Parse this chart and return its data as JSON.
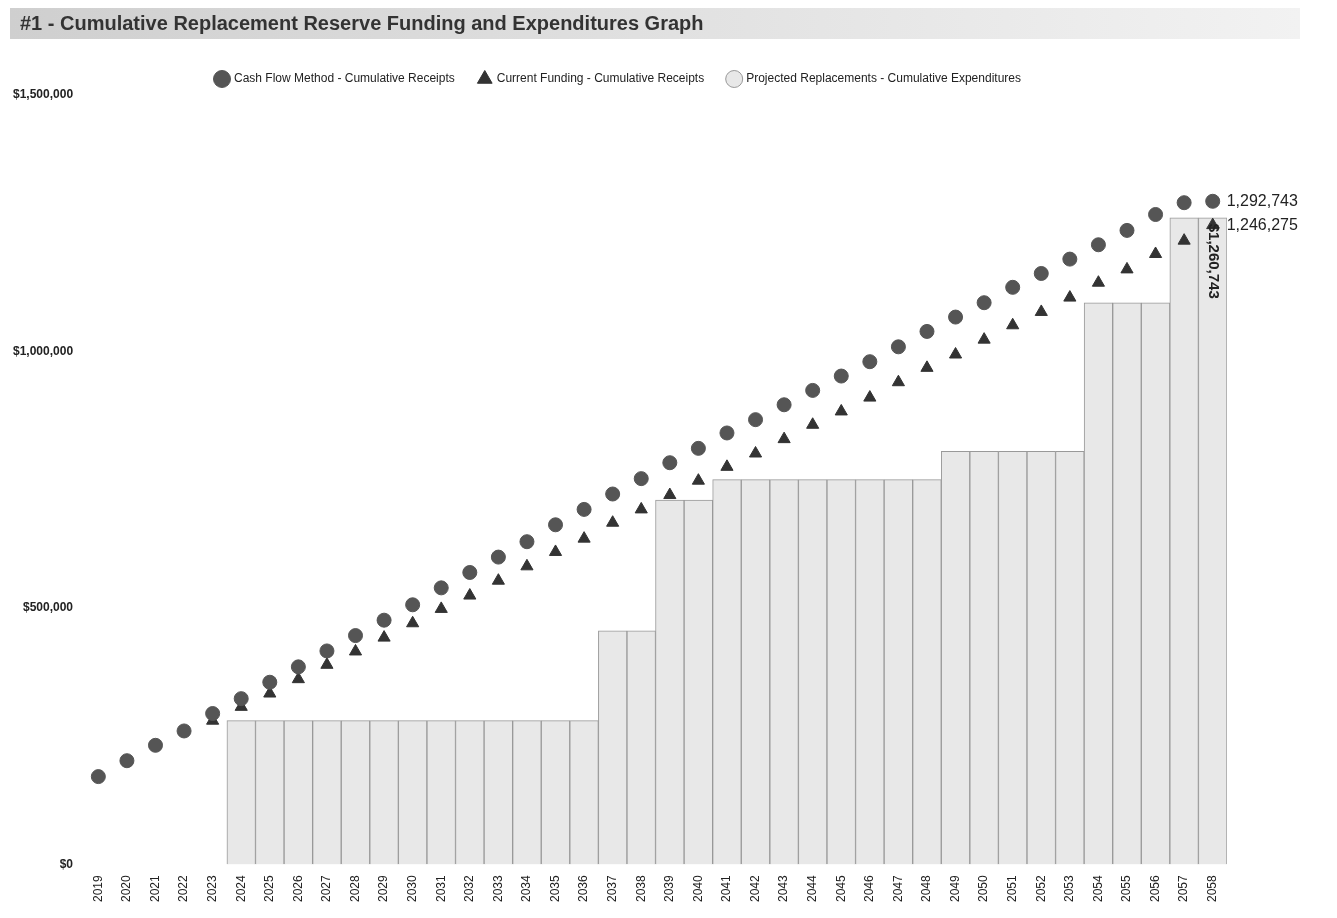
{
  "chart_data": {
    "type": "bar",
    "title": "#1 - Cumulative Replacement Reserve Funding and Expenditures Graph",
    "categories": [
      "2019",
      "2020",
      "2021",
      "2022",
      "2023",
      "2024",
      "2025",
      "2026",
      "2027",
      "2028",
      "2029",
      "2030",
      "2031",
      "2032",
      "2033",
      "2034",
      "2035",
      "2036",
      "2037",
      "2038",
      "2039",
      "2040",
      "2041",
      "2042",
      "2043",
      "2044",
      "2045",
      "2046",
      "2047",
      "2048",
      "2049",
      "2050",
      "2051",
      "2052",
      "2053",
      "2054",
      "2055",
      "2056",
      "2057",
      "2058"
    ],
    "ylim": [
      0,
      1500000
    ],
    "yticks": [
      {
        "value": 0,
        "label": "$0"
      },
      {
        "value": 500000,
        "label": "$500,000"
      },
      {
        "value": 1000000,
        "label": "$1,000,000"
      },
      {
        "value": 1500000,
        "label": "$1,500,000"
      }
    ],
    "legend": "top",
    "series": [
      {
        "name": "Projected Replacements - Cumulative Expenditures",
        "color": "#e8e8e8",
        "values": [
          0,
          0,
          0,
          0,
          0,
          280000,
          280000,
          280000,
          280000,
          280000,
          280000,
          280000,
          280000,
          280000,
          280000,
          280000,
          280000,
          280000,
          455000,
          455000,
          710000,
          710000,
          750000,
          750000,
          750000,
          750000,
          750000,
          750000,
          750000,
          750000,
          805000,
          805000,
          805000,
          805000,
          805000,
          1095000,
          1095000,
          1095000,
          1260743,
          1260743
        ],
        "value_labels": [
          null,
          null,
          null,
          null,
          null,
          null,
          null,
          null,
          null,
          null,
          null,
          null,
          null,
          null,
          null,
          null,
          null,
          null,
          null,
          null,
          null,
          null,
          null,
          null,
          null,
          null,
          null,
          null,
          null,
          null,
          null,
          null,
          null,
          null,
          null,
          null,
          null,
          null,
          null,
          "$1,260,743"
        ]
      },
      {
        "name": "Cash Flow Method - Cumulative Receipts",
        "type": "scatter",
        "marker": "circle",
        "color": "#555555",
        "values": [
          171000,
          202000,
          232000,
          260000,
          294000,
          323000,
          355000,
          385000,
          416000,
          446000,
          476000,
          506000,
          539000,
          569000,
          599000,
          629000,
          662000,
          692000,
          722000,
          752000,
          783000,
          811000,
          841000,
          867000,
          896000,
          924000,
          952000,
          980000,
          1009000,
          1039000,
          1067000,
          1095000,
          1125000,
          1152000,
          1180000,
          1208000,
          1236000,
          1267000,
          1290000,
          1292743
        ],
        "value_labels": [
          null,
          null,
          null,
          null,
          null,
          null,
          null,
          null,
          null,
          null,
          null,
          null,
          null,
          null,
          null,
          null,
          null,
          null,
          null,
          null,
          null,
          null,
          null,
          null,
          null,
          null,
          null,
          null,
          null,
          null,
          null,
          null,
          null,
          null,
          null,
          null,
          null,
          null,
          null,
          "1,292,743"
        ]
      },
      {
        "name": "Current Funding - Cumulative Receipts",
        "type": "scatter",
        "marker": "triangle",
        "color": "#333333",
        "values": [
          null,
          null,
          null,
          null,
          280000,
          307000,
          333000,
          361000,
          389000,
          415000,
          442000,
          470000,
          498000,
          524000,
          553000,
          581000,
          609000,
          635000,
          666000,
          692000,
          720000,
          748000,
          775000,
          801000,
          829000,
          857000,
          883000,
          910000,
          940000,
          968000,
          994000,
          1023000,
          1051000,
          1077000,
          1105000,
          1134000,
          1160000,
          1190000,
          1216000,
          1246275
        ],
        "value_labels": [
          null,
          null,
          null,
          null,
          null,
          null,
          null,
          null,
          null,
          null,
          null,
          null,
          null,
          null,
          null,
          null,
          null,
          null,
          null,
          null,
          null,
          null,
          null,
          null,
          null,
          null,
          null,
          null,
          null,
          null,
          null,
          null,
          null,
          null,
          null,
          null,
          null,
          null,
          null,
          "1,246,275"
        ]
      }
    ]
  }
}
